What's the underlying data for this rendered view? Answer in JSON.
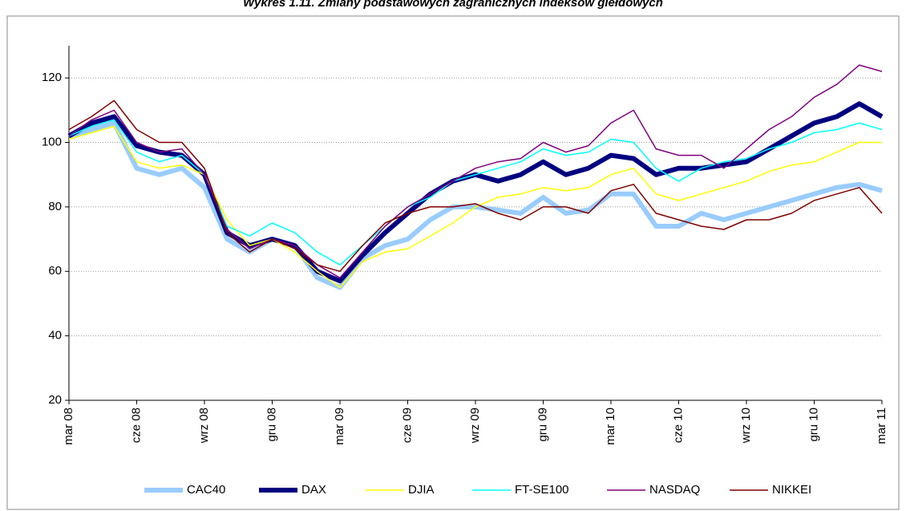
{
  "chart_data": {
    "type": "line",
    "title": "Wykres 1.11. Zmiany podstawowych zagranicznych indeksów giełdowych",
    "categories": [
      "mar 08",
      null,
      null,
      "cze 08",
      null,
      null,
      "wrz 08",
      null,
      null,
      "gru 08",
      null,
      null,
      "mar 09",
      null,
      null,
      "cze 09",
      null,
      null,
      "wrz 09",
      null,
      null,
      "gru 09",
      null,
      null,
      "mar 10",
      null,
      null,
      "cze 10",
      null,
      null,
      "wrz 10",
      null,
      null,
      "gru 10",
      null,
      null,
      "mar 11"
    ],
    "ylim": [
      20,
      130
    ],
    "yticks": [
      20,
      40,
      60,
      80,
      100,
      120
    ],
    "grid": true,
    "legend": "bottom",
    "series": [
      {
        "name": "CAC40",
        "color": "#99ccff",
        "line_width": 6,
        "values": [
          102,
          104,
          106,
          92,
          90,
          92,
          86,
          70,
          66,
          70,
          68,
          58,
          55,
          64,
          68,
          70,
          76,
          80,
          80,
          79,
          78,
          83,
          78,
          79,
          84,
          84,
          74,
          74,
          78,
          76,
          78,
          80,
          82,
          84,
          86,
          87,
          85
        ]
      },
      {
        "name": "DAX",
        "color": "#000080",
        "line_width": 6,
        "values": [
          102,
          106,
          108,
          99,
          97,
          96,
          90,
          72,
          68,
          70,
          68,
          60,
          57,
          65,
          72,
          78,
          84,
          88,
          90,
          88,
          90,
          94,
          90,
          92,
          96,
          95,
          90,
          92,
          92,
          93,
          94,
          98,
          102,
          106,
          108,
          112,
          108
        ]
      },
      {
        "name": "DJIA",
        "color": "#ffff00",
        "line_width": 1.5,
        "values": [
          101,
          103,
          105,
          94,
          92,
          93,
          90,
          76,
          68,
          70,
          66,
          60,
          55,
          63,
          66,
          67,
          71,
          75,
          80,
          83,
          84,
          86,
          85,
          86,
          90,
          92,
          84,
          82,
          84,
          86,
          88,
          91,
          93,
          94,
          97,
          100,
          100
        ]
      },
      {
        "name": "FT-SE100",
        "color": "#00ffff",
        "line_width": 1.5,
        "values": [
          102,
          105,
          107,
          97,
          94,
          96,
          90,
          74,
          71,
          75,
          72,
          66,
          62,
          68,
          74,
          80,
          83,
          88,
          90,
          92,
          94,
          98,
          96,
          97,
          101,
          100,
          92,
          88,
          92,
          94,
          95,
          98,
          100,
          103,
          104,
          106,
          104
        ]
      },
      {
        "name": "NASDAQ",
        "color": "#800080",
        "line_width": 1.5,
        "values": [
          102,
          107,
          110,
          100,
          97,
          98,
          90,
          73,
          67,
          70,
          68,
          62,
          58,
          66,
          74,
          80,
          84,
          88,
          92,
          94,
          95,
          100,
          97,
          99,
          106,
          110,
          98,
          96,
          96,
          92,
          98,
          104,
          108,
          114,
          118,
          124,
          122
        ]
      },
      {
        "name": "NIKKEI",
        "color": "#800000",
        "line_width": 1.5,
        "values": [
          104,
          108,
          113,
          104,
          100,
          100,
          92,
          72,
          66,
          70,
          67,
          62,
          60,
          68,
          75,
          78,
          80,
          80,
          81,
          78,
          76,
          80,
          80,
          78,
          85,
          87,
          78,
          76,
          74,
          73,
          76,
          76,
          78,
          82,
          84,
          86,
          78
        ]
      }
    ]
  }
}
